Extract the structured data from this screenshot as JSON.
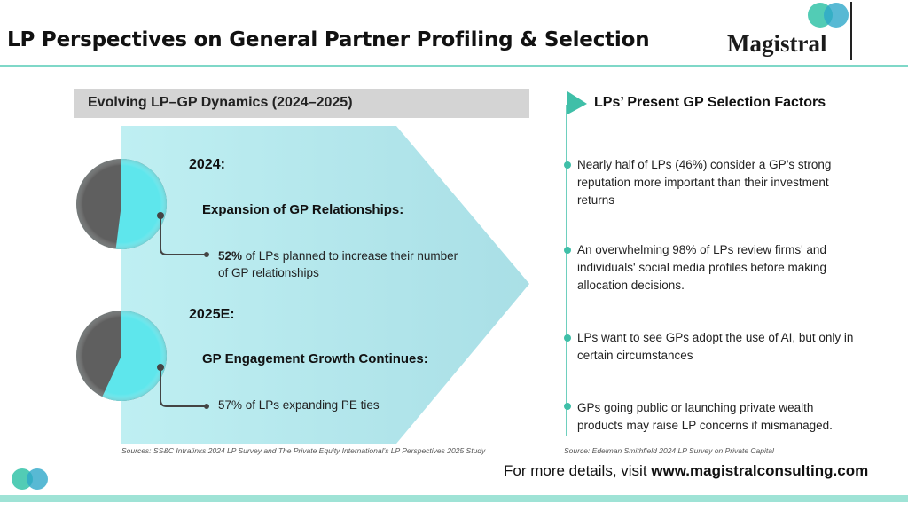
{
  "page": {
    "title": "LP Perspectives on General Partner Profiling & Selection"
  },
  "brand": {
    "name": "Magistral",
    "logo_icon": "overlapping-circles-logo",
    "colors": {
      "teal": "#3fc6ad",
      "cyan": "#5ee6ec",
      "blue": "#2ea7c9",
      "dark": "#5f5f5f"
    }
  },
  "left": {
    "section_title": "Evolving LP–GP Dynamics (2024–2025)",
    "blocks": [
      {
        "year": "2024:",
        "subhead": "Expansion of GP Relationships:",
        "point_bold": "52%",
        "point_rest": " of LPs planned to increase their number",
        "point_line2": "of GP relationships",
        "pie_share": 0.52
      },
      {
        "year": "2025E:",
        "subhead": "GP Engagement Growth Continues:",
        "point_bold": "",
        "point_rest": "57% of LPs expanding PE ties",
        "point_line2": "",
        "pie_share": 0.57
      }
    ],
    "sources": "Sources: SS&C Intralinks 2024 LP Survey and The Private Equity International’s LP Perspectives 2025 Study"
  },
  "right": {
    "title": "LPs’ Present GP Selection Factors",
    "factors": [
      "Nearly half of LPs (46%) consider a GP’s strong reputation more important than their investment returns",
      "An overwhelming 98% of LPs review firms' and individuals' social media profiles before making allocation decisions.",
      "LPs want to see GPs adopt the use of AI, but only in certain circumstances",
      "GPs going public or launching private wealth products may raise LP concerns if mismanaged."
    ],
    "source": "Source: Edelman Smithfield 2024 LP Survey on Private Capital"
  },
  "footer": {
    "prefix": "For more details, visit ",
    "url": "www.magistralconsulting.com"
  }
}
